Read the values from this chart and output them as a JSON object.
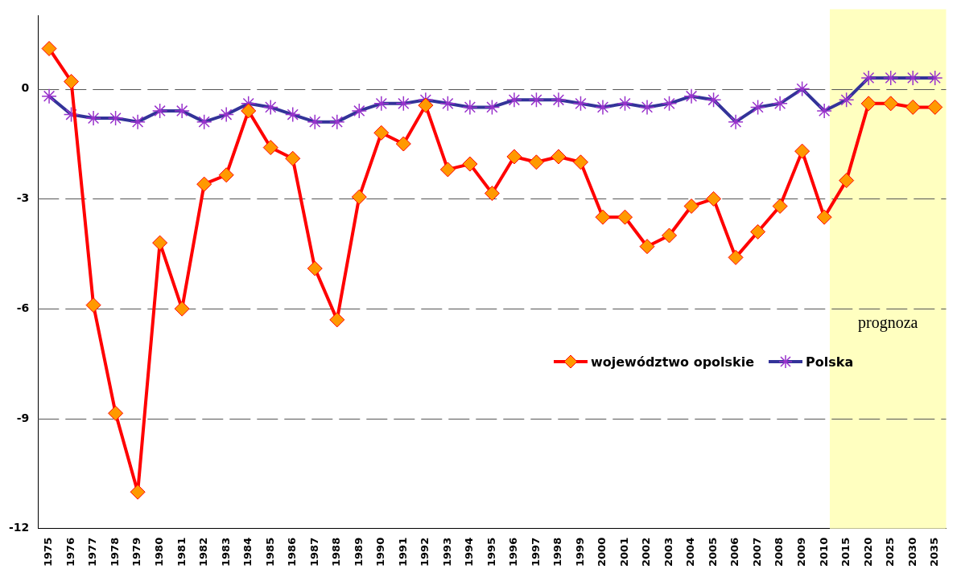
{
  "chart_data": {
    "type": "line",
    "categories": [
      "1975",
      "1976",
      "1977",
      "1978",
      "1979",
      "1980",
      "1981",
      "1982",
      "1983",
      "1984",
      "1985",
      "1986",
      "1987",
      "1988",
      "1989",
      "1990",
      "1991",
      "1992",
      "1993",
      "1994",
      "1995",
      "1996",
      "1997",
      "1998",
      "1999",
      "2000",
      "2001",
      "2002",
      "2003",
      "2004",
      "2005",
      "2006",
      "2007",
      "2008",
      "2009",
      "2010",
      "2015",
      "2020",
      "2025",
      "2030",
      "2035"
    ],
    "series": [
      {
        "name": "województwo opolskie",
        "color": "#ff0000",
        "marker": "diamond",
        "values": [
          1.1,
          0.2,
          -5.9,
          -8.85,
          -11.0,
          -4.2,
          -6.0,
          -2.6,
          -2.35,
          -0.6,
          -1.6,
          -1.9,
          -4.9,
          -6.3,
          -2.95,
          -1.2,
          -1.5,
          -0.45,
          -2.2,
          -2.05,
          -2.85,
          -1.85,
          -2.0,
          -1.85,
          -2.0,
          -3.5,
          -3.5,
          -4.3,
          -4.0,
          -3.2,
          -3.0,
          -4.6,
          -3.9,
          -3.2,
          -1.7,
          -3.5,
          -2.5,
          -0.4,
          -0.4,
          -0.5,
          -0.5
        ]
      },
      {
        "name": "Polska",
        "color": "#333399",
        "marker": "cross",
        "values": [
          -0.2,
          -0.7,
          -0.8,
          -0.8,
          -0.9,
          -0.6,
          -0.6,
          -0.9,
          -0.7,
          -0.4,
          -0.5,
          -0.7,
          -0.9,
          -0.9,
          -0.6,
          -0.4,
          -0.4,
          -0.3,
          -0.4,
          -0.5,
          -0.5,
          -0.3,
          -0.3,
          -0.3,
          -0.4,
          -0.5,
          -0.4,
          -0.5,
          -0.4,
          -0.2,
          -0.3,
          -0.9,
          -0.5,
          -0.4,
          0,
          -0.6,
          -0.3,
          0.3,
          0.3,
          0.3,
          0.3
        ]
      }
    ],
    "ylim": [
      -12,
      2
    ],
    "yticks": [
      -12,
      -9,
      -6,
      -3,
      0
    ],
    "grid": "y",
    "legend": "right",
    "bands": [
      {
        "axis": "x",
        "from": "2015",
        "to": "2035",
        "label": "prognoza",
        "color": "#ffffc0"
      }
    ]
  }
}
